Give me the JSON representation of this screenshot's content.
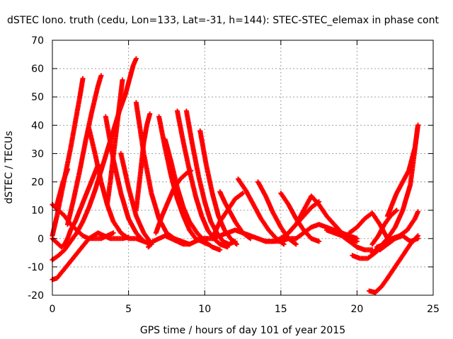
{
  "chart_data": {
    "type": "scatter",
    "title": "dSTEC Iono. truth (cedu, Lon=133, Lat=-31, h=144): STEC-STEC_elemax in phase cont",
    "xlabel": "GPS time / hours of day 101 of year 2015",
    "ylabel": "dSTEC  / TECUs",
    "xlim": [
      0,
      25
    ],
    "ylim": [
      -20,
      70
    ],
    "xticks": [
      "0",
      "5",
      "10",
      "15",
      "20",
      "25"
    ],
    "yticks": [
      "-20",
      "-10",
      "0",
      "10",
      "20",
      "30",
      "40",
      "50",
      "60",
      "70"
    ],
    "grid": true,
    "marker": "plus",
    "color": "#ff0000",
    "series": [
      {
        "x": [
          0.0,
          0.3,
          0.6,
          0.9,
          1.2,
          1.5,
          1.8,
          2.1,
          2.4,
          2.7,
          3.0,
          3.4,
          3.8,
          4.2,
          4.6,
          5.0
        ],
        "y": [
          -14.5,
          -14,
          -12,
          -10,
          -8,
          -6,
          -4,
          -2,
          0,
          1,
          2,
          1,
          0,
          0,
          0,
          0.5
        ]
      },
      {
        "x": [
          0.0,
          0.4,
          0.8,
          1.2,
          1.6,
          2.0,
          2.4,
          2.8,
          3.2,
          3.6,
          4.0,
          4.4,
          4.8,
          5.0,
          5.3,
          5.5
        ],
        "y": [
          -7.5,
          -6,
          -4,
          -1,
          2,
          6,
          11,
          17,
          24,
          31,
          38,
          45,
          51,
          55,
          61,
          63.5
        ]
      },
      {
        "x": [
          0.0,
          0.3,
          0.6,
          0.9,
          1.2,
          1.5,
          1.8,
          2.0
        ],
        "y": [
          1,
          8,
          16,
          24,
          32,
          41,
          50,
          56.5
        ]
      },
      {
        "x": [
          0.0,
          0.2,
          0.4,
          0.6,
          0.8,
          1.0,
          1.2,
          1.5,
          1.8,
          2.1,
          2.4,
          2.7,
          3.0
        ],
        "y": [
          0,
          -1,
          -2,
          -3,
          -2,
          0,
          3,
          6,
          10,
          14,
          18,
          22,
          26
        ]
      },
      {
        "x": [
          0.3,
          0.5,
          0.7,
          0.9,
          1.0
        ],
        "y": [
          12,
          16,
          20,
          23,
          24.5
        ]
      },
      {
        "x": [
          0.0,
          0.4,
          0.8,
          1.2,
          1.6,
          2.0,
          2.4,
          2.8,
          3.2,
          3.6,
          4.0
        ],
        "y": [
          12,
          10,
          8,
          5,
          3,
          1,
          0,
          0,
          0,
          1,
          2
        ]
      },
      {
        "x": [
          1.0,
          1.4,
          1.8,
          2.2,
          2.6,
          3.0,
          3.2
        ],
        "y": [
          5,
          14,
          24,
          35,
          45,
          54,
          57.5
        ]
      },
      {
        "x": [
          2.4,
          2.8,
          3.2,
          3.6,
          4.0,
          4.5,
          5.0,
          5.5,
          6.0,
          6.5
        ],
        "y": [
          39,
          30,
          20,
          12,
          6,
          2,
          0,
          0,
          -1,
          -2
        ]
      },
      {
        "x": [
          3.6,
          3.8,
          4.0,
          4.2,
          4.4,
          4.6
        ],
        "y": [
          12,
          20,
          29,
          38,
          47,
          56
        ]
      },
      {
        "x": [
          3.5,
          4.0,
          4.5,
          5.0,
          5.5,
          6.0,
          6.5
        ],
        "y": [
          43,
          28,
          16,
          7,
          2,
          -1,
          -2
        ]
      },
      {
        "x": [
          4.5,
          5.0,
          5.5,
          6.0,
          6.4
        ],
        "y": [
          30,
          18,
          8,
          2,
          -1
        ]
      },
      {
        "x": [
          5.5,
          5.8,
          6.0,
          6.2,
          6.4
        ],
        "y": [
          10,
          24,
          34,
          40,
          44
        ]
      },
      {
        "x": [
          5.5,
          6.0,
          6.5,
          7.0,
          7.5,
          8.0,
          8.5,
          9.0
        ],
        "y": [
          48,
          30,
          16,
          7,
          2,
          0,
          -1,
          -2
        ]
      },
      {
        "x": [
          6.3,
          6.6,
          7.0,
          7.4,
          7.8,
          8.2,
          8.6,
          9.0,
          9.4,
          9.8,
          10.2
        ],
        "y": [
          -3,
          -1,
          0,
          1,
          0,
          -1,
          -2,
          -2,
          -1,
          0,
          0
        ]
      },
      {
        "x": [
          7.0,
          7.4,
          7.8,
          8.2,
          8.6,
          9.0,
          9.4,
          9.8,
          10.2
        ],
        "y": [
          43,
          32,
          22,
          14,
          8,
          3,
          0,
          -1,
          -2
        ]
      },
      {
        "x": [
          7.4,
          7.8,
          8.2,
          8.6,
          9.0,
          9.5,
          10.0,
          10.5,
          11.0
        ],
        "y": [
          35,
          27,
          18,
          11,
          6,
          2,
          -1,
          -3,
          -4
        ]
      },
      {
        "x": [
          8.2,
          8.6,
          9.0,
          9.4,
          9.8,
          10.2,
          10.6,
          11.0,
          11.5
        ],
        "y": [
          45,
          34,
          24,
          15,
          8,
          3,
          0,
          -2,
          -3
        ]
      },
      {
        "x": [
          8.8,
          9.2,
          9.6,
          10.0,
          10.4,
          10.8,
          11.2,
          11.6,
          12.0
        ],
        "y": [
          45,
          33,
          22,
          13,
          6,
          2,
          -1,
          -2,
          -1
        ]
      },
      {
        "x": [
          9.7,
          10.1,
          10.5,
          10.9,
          11.3,
          11.7,
          12.1
        ],
        "y": [
          38,
          26,
          16,
          8,
          3,
          0,
          -2
        ]
      },
      {
        "x": [
          6.8,
          7.2,
          7.6,
          8.0,
          8.4,
          8.8,
          9.1
        ],
        "y": [
          2,
          8,
          13,
          18,
          21,
          23,
          24
        ]
      },
      {
        "x": [
          10.0,
          10.5,
          11.0,
          11.5,
          12.0,
          12.5,
          13.0,
          13.5,
          14.0,
          14.5,
          15.0,
          15.5,
          16.0
        ],
        "y": [
          0,
          0,
          1,
          2,
          3,
          2,
          1,
          0,
          -1,
          -1,
          -1,
          0,
          0
        ]
      },
      {
        "x": [
          10.5,
          11.0,
          11.5,
          12.0,
          12.5
        ],
        "y": [
          0,
          6,
          10,
          14,
          16
        ]
      },
      {
        "x": [
          11.0,
          11.3,
          11.6,
          12.0,
          12.5,
          13.0
        ],
        "y": [
          16.5,
          13,
          10,
          6,
          2,
          0
        ]
      },
      {
        "x": [
          12.2,
          12.7,
          13.2,
          13.7,
          14.2,
          14.7,
          15.2
        ],
        "y": [
          21,
          17,
          12,
          7,
          3,
          0,
          -2
        ]
      },
      {
        "x": [
          13.5,
          14.0,
          14.5,
          15.0,
          15.5,
          16.0
        ],
        "y": [
          20,
          15,
          9,
          4,
          0,
          -2
        ]
      },
      {
        "x": [
          15.0,
          15.5,
          16.0,
          16.5,
          17.0,
          17.5
        ],
        "y": [
          16,
          12,
          7,
          3,
          0,
          -1
        ]
      },
      {
        "x": [
          14.0,
          14.5,
          15.0,
          15.5,
          16.0,
          16.5,
          17.0,
          17.5
        ],
        "y": [
          -1,
          -1,
          0,
          2,
          5,
          8,
          11,
          13
        ]
      },
      {
        "x": [
          15.0,
          15.5,
          16.0,
          16.5,
          17.0,
          17.5,
          18.0,
          18.5,
          19.0,
          19.5,
          20.0
        ],
        "y": [
          0,
          2,
          5,
          10,
          15,
          12,
          8,
          5,
          2,
          0,
          -1
        ]
      },
      {
        "x": [
          16.0,
          16.5,
          17.0,
          17.5,
          18.0,
          18.5,
          19.0,
          19.5,
          20.0
        ],
        "y": [
          0,
          2,
          4,
          5,
          4,
          3,
          2,
          1,
          0
        ]
      },
      {
        "x": [
          18.0,
          18.5,
          19.0,
          19.5,
          20.0,
          20.5,
          21.0
        ],
        "y": [
          3,
          2,
          1,
          -1,
          -3,
          -4,
          -4
        ]
      },
      {
        "x": [
          19.5,
          20.0,
          20.5,
          21.0,
          21.5,
          22.0
        ],
        "y": [
          2,
          4,
          7,
          9,
          5,
          0
        ]
      },
      {
        "x": [
          19.7,
          20.2,
          20.7,
          21.2,
          21.6,
          22.0
        ],
        "y": [
          -6,
          -7,
          -7,
          -5,
          -3,
          -1
        ]
      },
      {
        "x": [
          21.0,
          21.4,
          21.8,
          22.2,
          22.6
        ],
        "y": [
          -2,
          1,
          5,
          8,
          10
        ]
      },
      {
        "x": [
          20.8,
          21.2,
          21.6,
          22.0,
          22.5,
          23.0,
          23.5,
          24.0
        ],
        "y": [
          -18.5,
          -19,
          -17,
          -14,
          -10,
          -6,
          -2,
          1
        ]
      },
      {
        "x": [
          21.0,
          21.5,
          22.0,
          22.5,
          23.0,
          23.5,
          24.0
        ],
        "y": [
          -5,
          -3,
          0,
          4,
          10,
          19,
          40
        ]
      },
      {
        "x": [
          21.3,
          21.8,
          22.3,
          22.8,
          23.3,
          23.8,
          24.0
        ],
        "y": [
          -3,
          -2,
          0,
          1,
          3,
          7,
          9.5
        ]
      },
      {
        "x": [
          21.5,
          22.0,
          22.5,
          23.0,
          23.5,
          24.0
        ],
        "y": [
          -4,
          -2,
          0,
          1,
          -1,
          0
        ]
      },
      {
        "x": [
          22.0,
          22.3,
          22.6,
          23.0,
          23.4,
          23.8,
          24.0
        ],
        "y": [
          8,
          12,
          16,
          20,
          24,
          32,
          40
        ]
      }
    ]
  }
}
